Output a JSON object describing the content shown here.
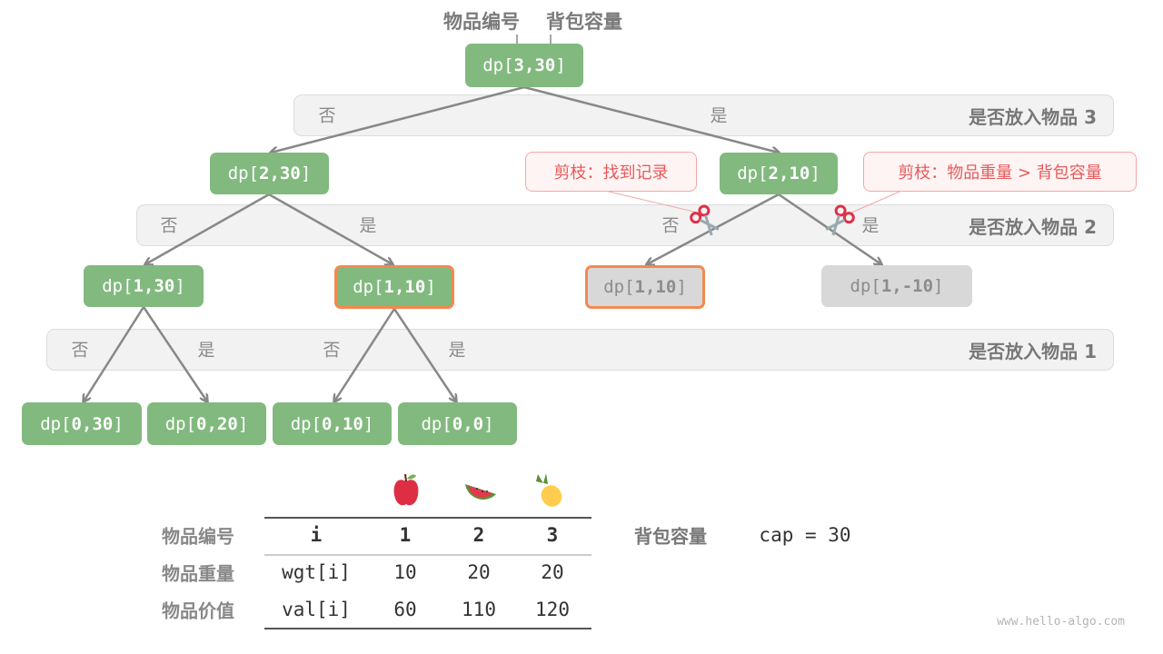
{
  "header": {
    "item_index_label": "物品编号",
    "capacity_label": "背包容量"
  },
  "node_prefix": "dp[",
  "node_suffix": "]",
  "nodes": [
    {
      "args": "3,30",
      "state": "normal"
    },
    {
      "args": "2,30",
      "state": "normal"
    },
    {
      "args": "2,10",
      "state": "normal"
    },
    {
      "args": "1,30",
      "state": "normal"
    },
    {
      "args": "1,10",
      "state": "highlighted"
    },
    {
      "args": "1,10",
      "state": "pruned-highlighted"
    },
    {
      "args": "1,-10",
      "state": "pruned"
    },
    {
      "args": "0,30",
      "state": "normal"
    },
    {
      "args": "0,20",
      "state": "normal"
    },
    {
      "args": "0,10",
      "state": "normal"
    },
    {
      "args": "0,0",
      "state": "normal"
    }
  ],
  "bands": [
    {
      "label": "是否放入物品 3"
    },
    {
      "label": "是否放入物品 2"
    },
    {
      "label": "是否放入物品 1"
    }
  ],
  "branch_no": "否",
  "branch_yes": "是",
  "callouts": [
    {
      "text": "剪枝：找到记录",
      "icon": "scissors-icon"
    },
    {
      "text": "剪枝：物品重量 > 背包容量",
      "icon": "scissors-icon"
    }
  ],
  "table": {
    "icons": [
      "apple-icon",
      "watermelon-icon",
      "pineapple-icon"
    ],
    "rows": [
      {
        "label": "物品编号",
        "cells": [
          "i",
          "1",
          "2",
          "3"
        ]
      },
      {
        "label": "物品重量",
        "cells": [
          "wgt[i]",
          "10",
          "20",
          "20"
        ]
      },
      {
        "label": "物品价值",
        "cells": [
          "val[i]",
          "60",
          "110",
          "120"
        ]
      }
    ]
  },
  "capacity": {
    "label": "背包容量",
    "value": "cap = 30"
  },
  "watermark": "www.hello-algo.com",
  "colors": {
    "node": "#81b97e",
    "pruned": "#d8d8d8",
    "highlight_border": "#f4894f",
    "prune_text": "#e65a5a"
  }
}
